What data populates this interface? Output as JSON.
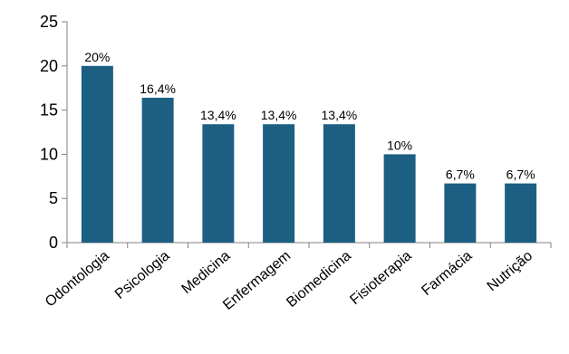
{
  "chart_data": {
    "type": "bar",
    "categories": [
      "Odontologia",
      "Psicologia",
      "Medicina",
      "Enfermagem",
      "Biomedicina",
      "Fisioterapia",
      "Farmácia",
      "Nutrição"
    ],
    "values": [
      20,
      16.4,
      13.4,
      13.4,
      13.4,
      10,
      6.7,
      6.7
    ],
    "data_labels": [
      "20%",
      "16,4%",
      "13,4%",
      "13,4%",
      "13,4%",
      "10%",
      "6,7%",
      "6,7%"
    ],
    "y_ticks": [
      "0",
      "5",
      "10",
      "15",
      "20",
      "25"
    ],
    "ylim": [
      0,
      25
    ],
    "title": "",
    "xlabel": "",
    "ylabel": "",
    "grid": false,
    "bar_color": "#1c5f82",
    "axis_color": "#808080"
  }
}
